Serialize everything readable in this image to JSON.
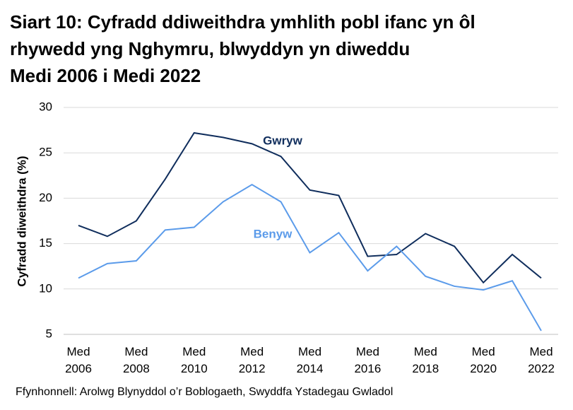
{
  "chart_data": {
    "type": "line",
    "title": "Siart 10: Cyfradd ddiweithdra ymhlith pobl ifanc yn ôl\nrhywedd yng Nghymru, blwyddyn yn diweddu\nMedi 2006 i Medi 2022",
    "y_label": "Cyfradd diweithdra (%)",
    "source": "Ffynhonnell: Arolwg Blynyddol o’r Boblogaeth, Swyddfa Ystadegau Gwladol",
    "categories": [
      "Med\n2006",
      null,
      "Med\n2008",
      null,
      "Med\n2010",
      null,
      "Med\n2012",
      null,
      "Med\n2014",
      null,
      "Med\n2016",
      null,
      "Med\n2018",
      null,
      "Med\n2020",
      null,
      "Med\n2022"
    ],
    "series": [
      {
        "name": "Gwryw",
        "color": "#0f2d5c",
        "values": [
          17.0,
          15.8,
          17.5,
          22.1,
          27.2,
          26.7,
          26.0,
          24.6,
          20.9,
          20.3,
          13.6,
          13.8,
          16.1,
          14.7,
          10.7,
          13.8,
          11.2
        ]
      },
      {
        "name": "Benyw",
        "color": "#5b9bea",
        "values": [
          11.2,
          12.8,
          13.1,
          16.5,
          16.8,
          19.6,
          21.5,
          19.6,
          14.0,
          16.2,
          12.0,
          14.7,
          11.4,
          10.3,
          9.9,
          10.9,
          5.4
        ]
      }
    ],
    "ylim": [
      5,
      30
    ],
    "yticks": [
      5,
      10,
      15,
      20,
      25,
      30
    ],
    "grid": true
  }
}
